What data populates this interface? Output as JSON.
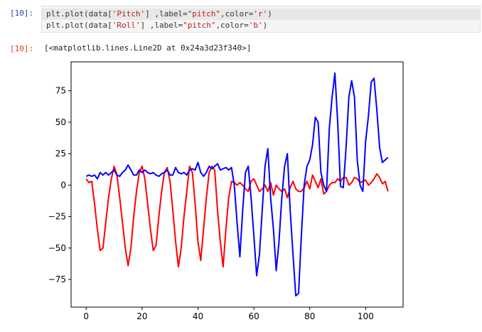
{
  "input_cell": {
    "prompt": "[10]:",
    "lines": [
      [
        {
          "text": "plt.plot(data[",
          "color": "#333333"
        },
        {
          "text": "'Pitch'",
          "color": "#ba2121"
        },
        {
          "text": "] ,label=",
          "color": "#333333"
        },
        {
          "text": "\"pitch\"",
          "color": "#ba2121"
        },
        {
          "text": ",color=",
          "color": "#333333"
        },
        {
          "text": "'r'",
          "color": "#ba2121"
        },
        {
          "text": ")",
          "color": "#333333"
        }
      ],
      [
        {
          "text": "plt.plot(data[",
          "color": "#333333"
        },
        {
          "text": "'Roll'",
          "color": "#ba2121"
        },
        {
          "text": "] ,label=",
          "color": "#333333"
        },
        {
          "text": "\"pitch\"",
          "color": "#ba2121"
        },
        {
          "text": ",color=",
          "color": "#333333"
        },
        {
          "text": "'b'",
          "color": "#ba2121"
        },
        {
          "text": ")",
          "color": "#333333"
        }
      ]
    ]
  },
  "output_cell": {
    "prompt": "[10]:",
    "text": "[<matplotlib.lines.Line2D at 0x24a3d23f340>]"
  },
  "chart_data": {
    "type": "line",
    "x": [
      0,
      1,
      2,
      3,
      4,
      5,
      6,
      7,
      8,
      9,
      10,
      11,
      12,
      13,
      14,
      15,
      16,
      17,
      18,
      19,
      20,
      21,
      22,
      23,
      24,
      25,
      26,
      27,
      28,
      29,
      30,
      31,
      32,
      33,
      34,
      35,
      36,
      37,
      38,
      39,
      40,
      41,
      42,
      43,
      44,
      45,
      46,
      47,
      48,
      49,
      50,
      51,
      52,
      53,
      54,
      55,
      56,
      57,
      58,
      59,
      60,
      61,
      62,
      63,
      64,
      65,
      66,
      67,
      68,
      69,
      70,
      71,
      72,
      73,
      74,
      75,
      76,
      77,
      78,
      79,
      80,
      81,
      82,
      83,
      84,
      85,
      86,
      87,
      88,
      89,
      90,
      91,
      92,
      93,
      94,
      95,
      96,
      97,
      98,
      99,
      100,
      101,
      102,
      103,
      104,
      105,
      106,
      107,
      108
    ],
    "series": [
      {
        "color": "#ff0000",
        "values": [
          5,
          2,
          3,
          -15,
          -35,
          -52,
          -50,
          -30,
          -10,
          5,
          15,
          8,
          -10,
          -30,
          -50,
          -64,
          -50,
          -25,
          -5,
          10,
          15,
          5,
          -15,
          -35,
          -52,
          -48,
          -25,
          -5,
          10,
          14,
          3,
          -20,
          -45,
          -65,
          -50,
          -25,
          -5,
          15,
          10,
          -15,
          -45,
          -60,
          -35,
          -10,
          10,
          15,
          12,
          -20,
          -45,
          -65,
          -35,
          -10,
          3,
          2,
          0,
          2,
          0,
          -3,
          -5,
          3,
          5,
          0,
          -5,
          -3,
          0,
          -5,
          2,
          -8,
          0,
          -3,
          -5,
          -3,
          -10,
          -2,
          3,
          -3,
          -5,
          -5,
          -2,
          3,
          -3,
          8,
          3,
          -2,
          5,
          -7,
          -5,
          0,
          2,
          2,
          5,
          3,
          6,
          6,
          0,
          2,
          6,
          5,
          2,
          3,
          4,
          0,
          2,
          5,
          9,
          6,
          1,
          3,
          -5
        ]
      },
      {
        "color": "#0000ff",
        "values": [
          7,
          8,
          7,
          8,
          5,
          10,
          8,
          10,
          8,
          10,
          12,
          8,
          7,
          10,
          12,
          16,
          12,
          8,
          8,
          12,
          10,
          12,
          10,
          9,
          10,
          8,
          7,
          9,
          10,
          12,
          8,
          8,
          14,
          10,
          9,
          10,
          8,
          12,
          13,
          12,
          18,
          10,
          7,
          10,
          15,
          13,
          15,
          17,
          12,
          13,
          14,
          12,
          14,
          0,
          -30,
          -57,
          -20,
          10,
          15,
          -10,
          -40,
          -72,
          -55,
          -20,
          15,
          29,
          -10,
          -35,
          -68,
          -45,
          -10,
          15,
          25,
          -20,
          -55,
          -88,
          -86,
          -40,
          0,
          15,
          20,
          32,
          54,
          50,
          10,
          0,
          -5,
          45,
          70,
          89,
          50,
          -1,
          -2,
          30,
          70,
          83,
          70,
          20,
          0,
          -5,
          35,
          55,
          82,
          85,
          60,
          30,
          18,
          20,
          22
        ]
      }
    ],
    "xlim": [
      -5.4,
      113.4
    ],
    "ylim": [
      -97,
      98
    ],
    "xticks": [
      0,
      20,
      40,
      60,
      80,
      100
    ],
    "yticks": [
      75,
      50,
      25,
      0,
      {
        "value": -25,
        "label": "−25"
      },
      {
        "value": -50,
        "label": "−50"
      },
      {
        "value": -75,
        "label": "−75"
      }
    ]
  }
}
